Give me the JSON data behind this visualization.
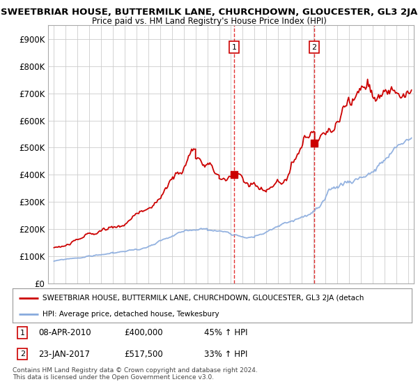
{
  "title": "SWEETBRIAR HOUSE, BUTTERMILK LANE, CHURCHDOWN, GLOUCESTER, GL3 2JA",
  "subtitle": "Price paid vs. HM Land Registry's House Price Index (HPI)",
  "ylabel_ticks": [
    "£0",
    "£100K",
    "£200K",
    "£300K",
    "£400K",
    "£500K",
    "£600K",
    "£700K",
    "£800K",
    "£900K"
  ],
  "ylim": [
    0,
    950000
  ],
  "xlim_start": 1994.5,
  "xlim_end": 2025.5,
  "sale1_x": 2010.27,
  "sale1_y": 400000,
  "sale2_x": 2017.06,
  "sale2_y": 517500,
  "legend_property": "SWEETBRIAR HOUSE, BUTTERMILK LANE, CHURCHDOWN, GLOUCESTER, GL3 2JA (detach",
  "legend_hpi": "HPI: Average price, detached house, Tewkesbury",
  "ann1_label": "1",
  "ann1_date": "08-APR-2010",
  "ann1_price": "£400,000",
  "ann1_hpi": "45% ↑ HPI",
  "ann2_label": "2",
  "ann2_date": "23-JAN-2017",
  "ann2_price": "£517,500",
  "ann2_hpi": "33% ↑ HPI",
  "footer_line1": "Contains HM Land Registry data © Crown copyright and database right 2024.",
  "footer_line2": "This data is licensed under the Open Government Licence v3.0.",
  "property_color": "#cc0000",
  "hpi_color": "#88aadd",
  "background_color": "#ffffff",
  "grid_color": "#cccccc"
}
